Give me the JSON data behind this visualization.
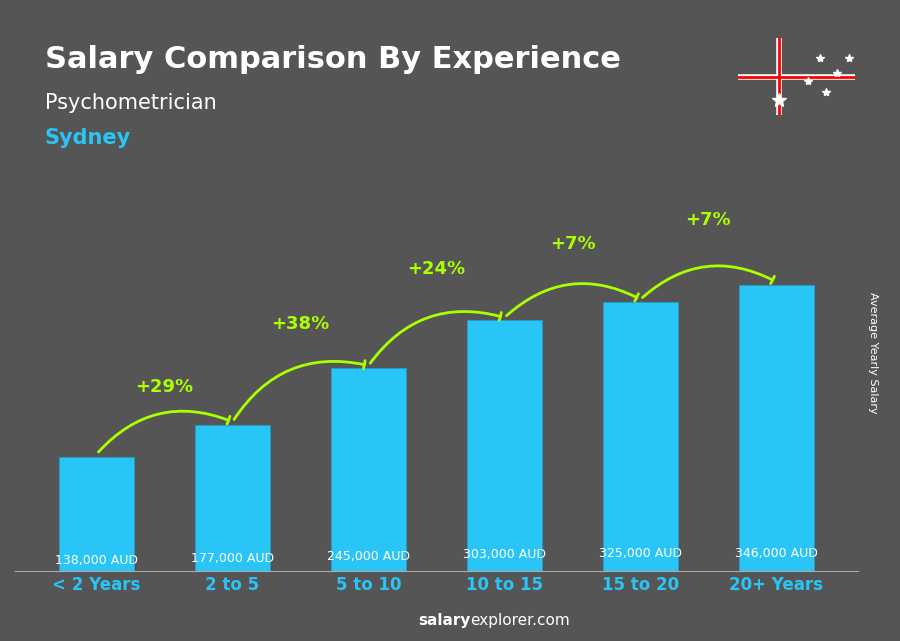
{
  "title": "Salary Comparison By Experience",
  "subtitle": "Psychometrician",
  "city": "Sydney",
  "categories": [
    "< 2 Years",
    "2 to 5",
    "5 to 10",
    "10 to 15",
    "15 to 20",
    "20+ Years"
  ],
  "values": [
    138000,
    177000,
    245000,
    303000,
    325000,
    346000
  ],
  "labels": [
    "138,000 AUD",
    "177,000 AUD",
    "245,000 AUD",
    "303,000 AUD",
    "325,000 AUD",
    "346,000 AUD"
  ],
  "pct_changes": [
    "+29%",
    "+38%",
    "+24%",
    "+7%",
    "+7%"
  ],
  "bar_color_face": "#29c5f6",
  "bar_color_edge": "#1a9fcf",
  "bar_color_dark": "#0e6fa0",
  "background_color": "#555555",
  "title_color": "#ffffff",
  "subtitle_color": "#ffffff",
  "city_color": "#29c5f6",
  "label_color": "#ffffff",
  "pct_color": "#aaff00",
  "xlabel_color": "#29c5f6",
  "footer_text": "salaryexplorer.com",
  "ylabel_text": "Average Yearly Salary",
  "figsize": [
    9.0,
    6.41
  ],
  "dpi": 100
}
